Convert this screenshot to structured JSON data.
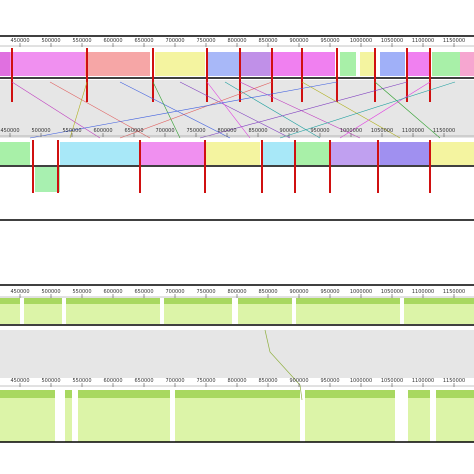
{
  "rulers": [
    {
      "labels": [
        "450000",
        "500000",
        "550000",
        "600000",
        "650000",
        "700000",
        "750000",
        "800000",
        "850000",
        "900000",
        "950000",
        "1000000",
        "1050000",
        "1100000",
        "1150000"
      ]
    },
    {
      "labels": [
        "450000",
        "500000",
        "550000",
        "600000",
        "650000",
        "700000",
        "750000",
        "800000",
        "850000",
        "900000",
        "950000",
        "1000000",
        "1050000",
        "1100000",
        "1150000"
      ]
    },
    {
      "labels": [
        "450000",
        "500000",
        "550000",
        "600000",
        "650000",
        "700000",
        "750000",
        "800000",
        "850000",
        "900000",
        "950000",
        "1000000",
        "1050000",
        "1100000",
        "1150000"
      ]
    },
    {
      "labels": [
        "450000",
        "500000",
        "550000",
        "600000",
        "650000",
        "700000",
        "750000",
        "800000",
        "850000",
        "900000",
        "950000",
        "1000000",
        "1050000",
        "1100000",
        "1150000"
      ]
    }
  ]
}
